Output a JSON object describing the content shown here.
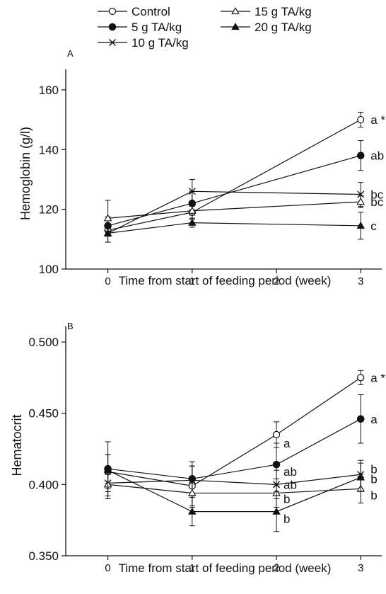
{
  "legend": {
    "placement": "top",
    "entries": [
      {
        "label": "Control",
        "marker": "open-circle"
      },
      {
        "label": "15 g TA/kg",
        "marker": "open-triangle"
      },
      {
        "label": "5 g TA/kg",
        "marker": "filled-circle"
      },
      {
        "label": "20 g TA/kg",
        "marker": "filled-triangle"
      },
      {
        "label": "10 g TA/kg",
        "marker": "cross"
      }
    ]
  },
  "chart_data": [
    {
      "type": "line",
      "panel_label": "A",
      "xlabel": "Time from start of feeding period (week)",
      "ylabel": "Hemoglobin (g/l)",
      "xlim": [
        -0.5,
        3.3
      ],
      "ylim": [
        100,
        164
      ],
      "xticks": [
        0,
        1,
        2,
        3
      ],
      "yticks": [
        100,
        120,
        140,
        160
      ],
      "grid": false,
      "series": [
        {
          "name": "Control",
          "marker": "open-circle",
          "x": [
            0,
            1,
            3
          ],
          "y": [
            113,
            119,
            150
          ],
          "err": [
            2,
            2,
            2.5
          ],
          "label": "a *"
        },
        {
          "name": "5 g TA/kg",
          "marker": "filled-circle",
          "x": [
            0,
            1,
            3
          ],
          "y": [
            114.5,
            122,
            138
          ],
          "err": [
            3,
            4,
            5
          ],
          "label": "ab *"
        },
        {
          "name": "10 g TA/kg",
          "marker": "cross",
          "x": [
            0,
            1,
            3
          ],
          "y": [
            112,
            126,
            125
          ],
          "err": [
            3,
            4,
            4
          ],
          "label": "bc"
        },
        {
          "name": "15 g TA/kg",
          "marker": "open-triangle",
          "x": [
            0,
            1,
            3
          ],
          "y": [
            117,
            119.5,
            122.5
          ],
          "err": [
            6,
            3,
            2
          ],
          "label": "bc"
        },
        {
          "name": "20 g TA/kg",
          "marker": "filled-triangle",
          "x": [
            0,
            1,
            3
          ],
          "y": [
            112,
            115.5,
            114.5
          ],
          "err": [
            3,
            1.5,
            4.5
          ],
          "label": "c"
        }
      ]
    },
    {
      "type": "line",
      "panel_label": "B",
      "xlabel": "Time from start of feeding period (week)",
      "ylabel": "Hematocrit",
      "xlim": [
        -0.5,
        3.3
      ],
      "ylim": [
        0.35,
        0.505
      ],
      "xticks": [
        0,
        1,
        2,
        3
      ],
      "yticks": [
        0.35,
        0.4,
        0.45,
        0.5
      ],
      "yticklabels": [
        "0.350",
        "0.400",
        "0.450",
        "0.500"
      ],
      "grid": false,
      "series": [
        {
          "name": "Control",
          "marker": "open-circle",
          "x": [
            0,
            1,
            2,
            3
          ],
          "y": [
            0.409,
            0.399,
            0.435,
            0.475
          ],
          "err": [
            0.012,
            0.014,
            0.009,
            0.005
          ],
          "labels": [
            null,
            null,
            "a",
            "a *"
          ]
        },
        {
          "name": "5 g TA/kg",
          "marker": "filled-circle",
          "x": [
            0,
            1,
            2,
            3
          ],
          "y": [
            0.411,
            0.404,
            0.414,
            0.446
          ],
          "err": [
            0.01,
            0.012,
            0.015,
            0.017
          ],
          "labels": [
            null,
            null,
            "ab",
            "a"
          ]
        },
        {
          "name": "10 g TA/kg",
          "marker": "cross",
          "x": [
            0,
            1,
            2,
            3
          ],
          "y": [
            0.401,
            0.403,
            0.4,
            0.407
          ],
          "err": [
            0.006,
            0.01,
            0.01,
            0.01
          ],
          "labels": [
            null,
            null,
            "ab",
            "b"
          ]
        },
        {
          "name": "15 g TA/kg",
          "marker": "open-triangle",
          "x": [
            0,
            1,
            2,
            3
          ],
          "y": [
            0.4,
            0.394,
            0.394,
            0.397
          ],
          "err": [
            0.008,
            0.01,
            0.01,
            0.01
          ],
          "labels": [
            null,
            null,
            "b",
            "b"
          ]
        },
        {
          "name": "20 g TA/kg",
          "marker": "filled-triangle",
          "x": [
            0,
            1,
            2,
            3
          ],
          "y": [
            0.41,
            0.381,
            0.381,
            0.405
          ],
          "err": [
            0.02,
            0.01,
            0.014,
            0.01
          ],
          "labels": [
            null,
            null,
            "b",
            "b"
          ]
        }
      ]
    }
  ]
}
